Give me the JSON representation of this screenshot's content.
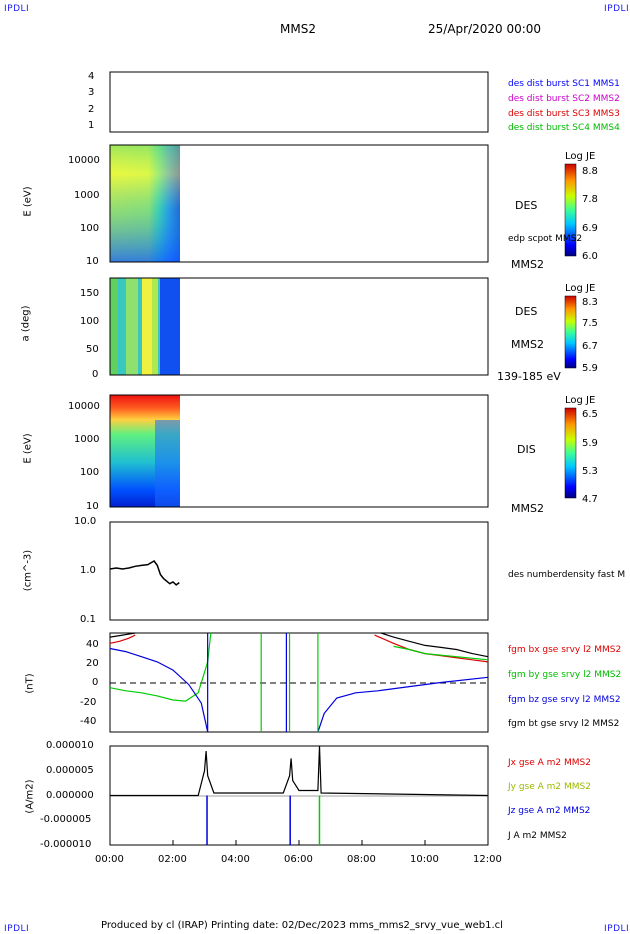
{
  "header": {
    "corner_left_top": "IPDLI",
    "corner_right_top": "IPDLI",
    "corner_left_bottom": "IPDLI",
    "corner_right_bottom": "IPDLI",
    "title": "MMS2",
    "datetime": "25/Apr/2020 00:00"
  },
  "footer": {
    "text": "Produced by cl (IRAP)   Printing date: 02/Dec/2023   mms_mms2_srvy_vue_web1.cl"
  },
  "colors": {
    "mms1": "#0000ff",
    "mms2": "#cc00cc",
    "mms3": "#dd0000",
    "mms4": "#00bb00",
    "bx": "#dd0000",
    "by": "#00cc00",
    "bz": "#0000dd",
    "bt": "#000000"
  },
  "x_axis": {
    "ticks": [
      "00:00",
      "02:00",
      "04:00",
      "06:00",
      "08:00",
      "10:00",
      "12:00"
    ],
    "range_hours": [
      0,
      12
    ]
  },
  "panels": {
    "p1": {
      "ylabel": "",
      "ticks": [
        "4",
        "3",
        "2",
        "1"
      ],
      "legend": [
        {
          "text": "des dist burst SC1 MMS1",
          "color": "#0000ff"
        },
        {
          "text": "des dist burst SC2 MMS2",
          "color": "#cc00cc"
        },
        {
          "text": "des dist burst SC3 MMS3",
          "color": "#dd0000"
        },
        {
          "text": "des dist burst SC4 MMS4",
          "color": "#00bb00"
        }
      ]
    },
    "p2": {
      "ylabel": "E (eV)",
      "ticks": [
        "10000",
        "1000",
        "100",
        "10"
      ],
      "side_label": "DES",
      "side_label2": "edp scpot MMS2",
      "bottom_right": "MMS2",
      "colorbar": {
        "title": "Log JE",
        "ticks": [
          "8.8",
          "7.8",
          "6.9",
          "6.0"
        ]
      }
    },
    "p3": {
      "ylabel": "a (deg)",
      "ticks": [
        "150",
        "100",
        "50",
        "0"
      ],
      "side_label": "DES",
      "side_label2": "MMS2",
      "bottom_right": "139-185 eV",
      "colorbar": {
        "title": "Log JE",
        "ticks": [
          "8.3",
          "7.5",
          "6.7",
          "5.9"
        ]
      }
    },
    "p4": {
      "ylabel": "E (eV)",
      "ticks": [
        "10000",
        "1000",
        "100",
        "10"
      ],
      "side_label": "DIS",
      "bottom_right": "MMS2",
      "colorbar": {
        "title": "Log JE",
        "ticks": [
          "6.5",
          "5.9",
          "5.3",
          "4.7"
        ]
      }
    },
    "p5": {
      "ylabel": "(cm^-3)",
      "ticks": [
        "10.0",
        "1.0",
        "0.1"
      ],
      "legend": [
        {
          "text": "des numberdensity fast M",
          "color": "#000000"
        }
      ]
    },
    "p6": {
      "ylabel": "(nT)",
      "ticks": [
        "40",
        "20",
        "0",
        "-20",
        "-40"
      ],
      "legend": [
        {
          "text": "fgm bx gse srvy l2 MMS2",
          "color": "#dd0000"
        },
        {
          "text": "fgm by gse srvy l2 MMS2",
          "color": "#00bb00"
        },
        {
          "text": "fgm bz gse srvy l2 MMS2",
          "color": "#0000dd"
        },
        {
          "text": "fgm bt gse srvy l2 MMS2",
          "color": "#000000"
        }
      ]
    },
    "p7": {
      "ylabel": "(A/m2)",
      "ticks": [
        "0.000010",
        "0.000005",
        "0.000000",
        "-0.000005",
        "-0.000010"
      ],
      "legend": [
        {
          "text": "Jx gse A m2 MMS2",
          "color": "#dd0000"
        },
        {
          "text": "Jy gse A m2 MMS2",
          "color": "#99bb00"
        },
        {
          "text": "Jz gse A m2 MMS2",
          "color": "#0000dd"
        },
        {
          "text": "J A m2 MMS2",
          "color": "#000000"
        }
      ]
    }
  },
  "chart_data": [
    {
      "type": "line",
      "panel": "density",
      "ylabel": "(cm^-3)",
      "ylog": true,
      "ylim": [
        0.1,
        10.0
      ],
      "xlim": [
        0,
        12
      ],
      "series": [
        {
          "name": "des numberdensity fast M",
          "x": [
            0.0,
            0.2,
            0.4,
            0.6,
            0.8,
            1.0,
            1.2,
            1.4,
            1.5,
            1.6,
            1.7,
            1.8,
            1.9,
            2.0,
            2.1,
            2.2
          ],
          "y": [
            1.1,
            1.15,
            1.1,
            1.15,
            1.25,
            1.3,
            1.35,
            1.6,
            1.3,
            0.85,
            0.7,
            0.62,
            0.55,
            0.6,
            0.52,
            0.58
          ]
        }
      ]
    },
    {
      "type": "line",
      "panel": "magnetic field",
      "ylabel": "(nT)",
      "ylim": [
        -48,
        48
      ],
      "xlim": [
        0,
        12
      ],
      "series": [
        {
          "name": "fgm bx gse srvy l2 MMS2",
          "x": [
            0.0,
            0.3,
            0.6,
            0.8,
            8.4,
            9.0,
            9.5,
            10.0,
            10.5,
            11.0,
            11.5,
            12.0
          ],
          "y": [
            38,
            40,
            43,
            46,
            46,
            38,
            32,
            28,
            26,
            24,
            22,
            20
          ]
        },
        {
          "name": "fgm by gse srvy l2 MMS2",
          "x": [
            0.0,
            0.5,
            1.0,
            1.5,
            2.0,
            2.4,
            2.8,
            3.1,
            3.2,
            9.0,
            9.5,
            10.0,
            11.0,
            12.0
          ],
          "y": [
            -5,
            -8,
            -10,
            -13,
            -17,
            -18,
            -10,
            20,
            48,
            35,
            32,
            28,
            25,
            22
          ]
        },
        {
          "name": "fgm bz gse srvy l2 MMS2",
          "x": [
            0.0,
            0.5,
            1.0,
            1.5,
            2.0,
            2.5,
            2.9,
            3.1,
            6.6,
            6.8,
            7.2,
            7.8,
            8.5,
            9.5,
            10.5,
            12.0
          ],
          "y": [
            33,
            30,
            25,
            20,
            12,
            -2,
            -20,
            -48,
            -48,
            -30,
            -15,
            -10,
            -8,
            -4,
            0,
            5
          ]
        },
        {
          "name": "fgm bt gse srvy l2 MMS2",
          "x": [
            0.0,
            0.4,
            0.8,
            8.6,
            9.0,
            9.5,
            10.0,
            10.5,
            11.0,
            11.5,
            12.0
          ],
          "y": [
            44,
            46,
            48,
            48,
            44,
            40,
            36,
            34,
            32,
            28,
            25
          ]
        }
      ]
    },
    {
      "type": "line",
      "panel": "current density",
      "ylabel": "(A/m2)",
      "ylim": [
        -1e-05,
        1e-05
      ],
      "xlim": [
        0,
        12
      ],
      "series": [
        {
          "name": "J A m2 MMS2",
          "x": [
            0.0,
            2.8,
            3.0,
            3.05,
            3.1,
            3.3,
            5.5,
            5.7,
            5.75,
            5.8,
            6.0,
            6.6,
            6.65,
            6.7,
            12.0
          ],
          "y": [
            0.0,
            0.0,
            5e-06,
            9e-06,
            4e-06,
            5e-07,
            5e-07,
            4e-06,
            7.5e-06,
            3e-06,
            1e-06,
            1e-06,
            1e-05,
            5e-07,
            0.0
          ]
        }
      ]
    }
  ]
}
